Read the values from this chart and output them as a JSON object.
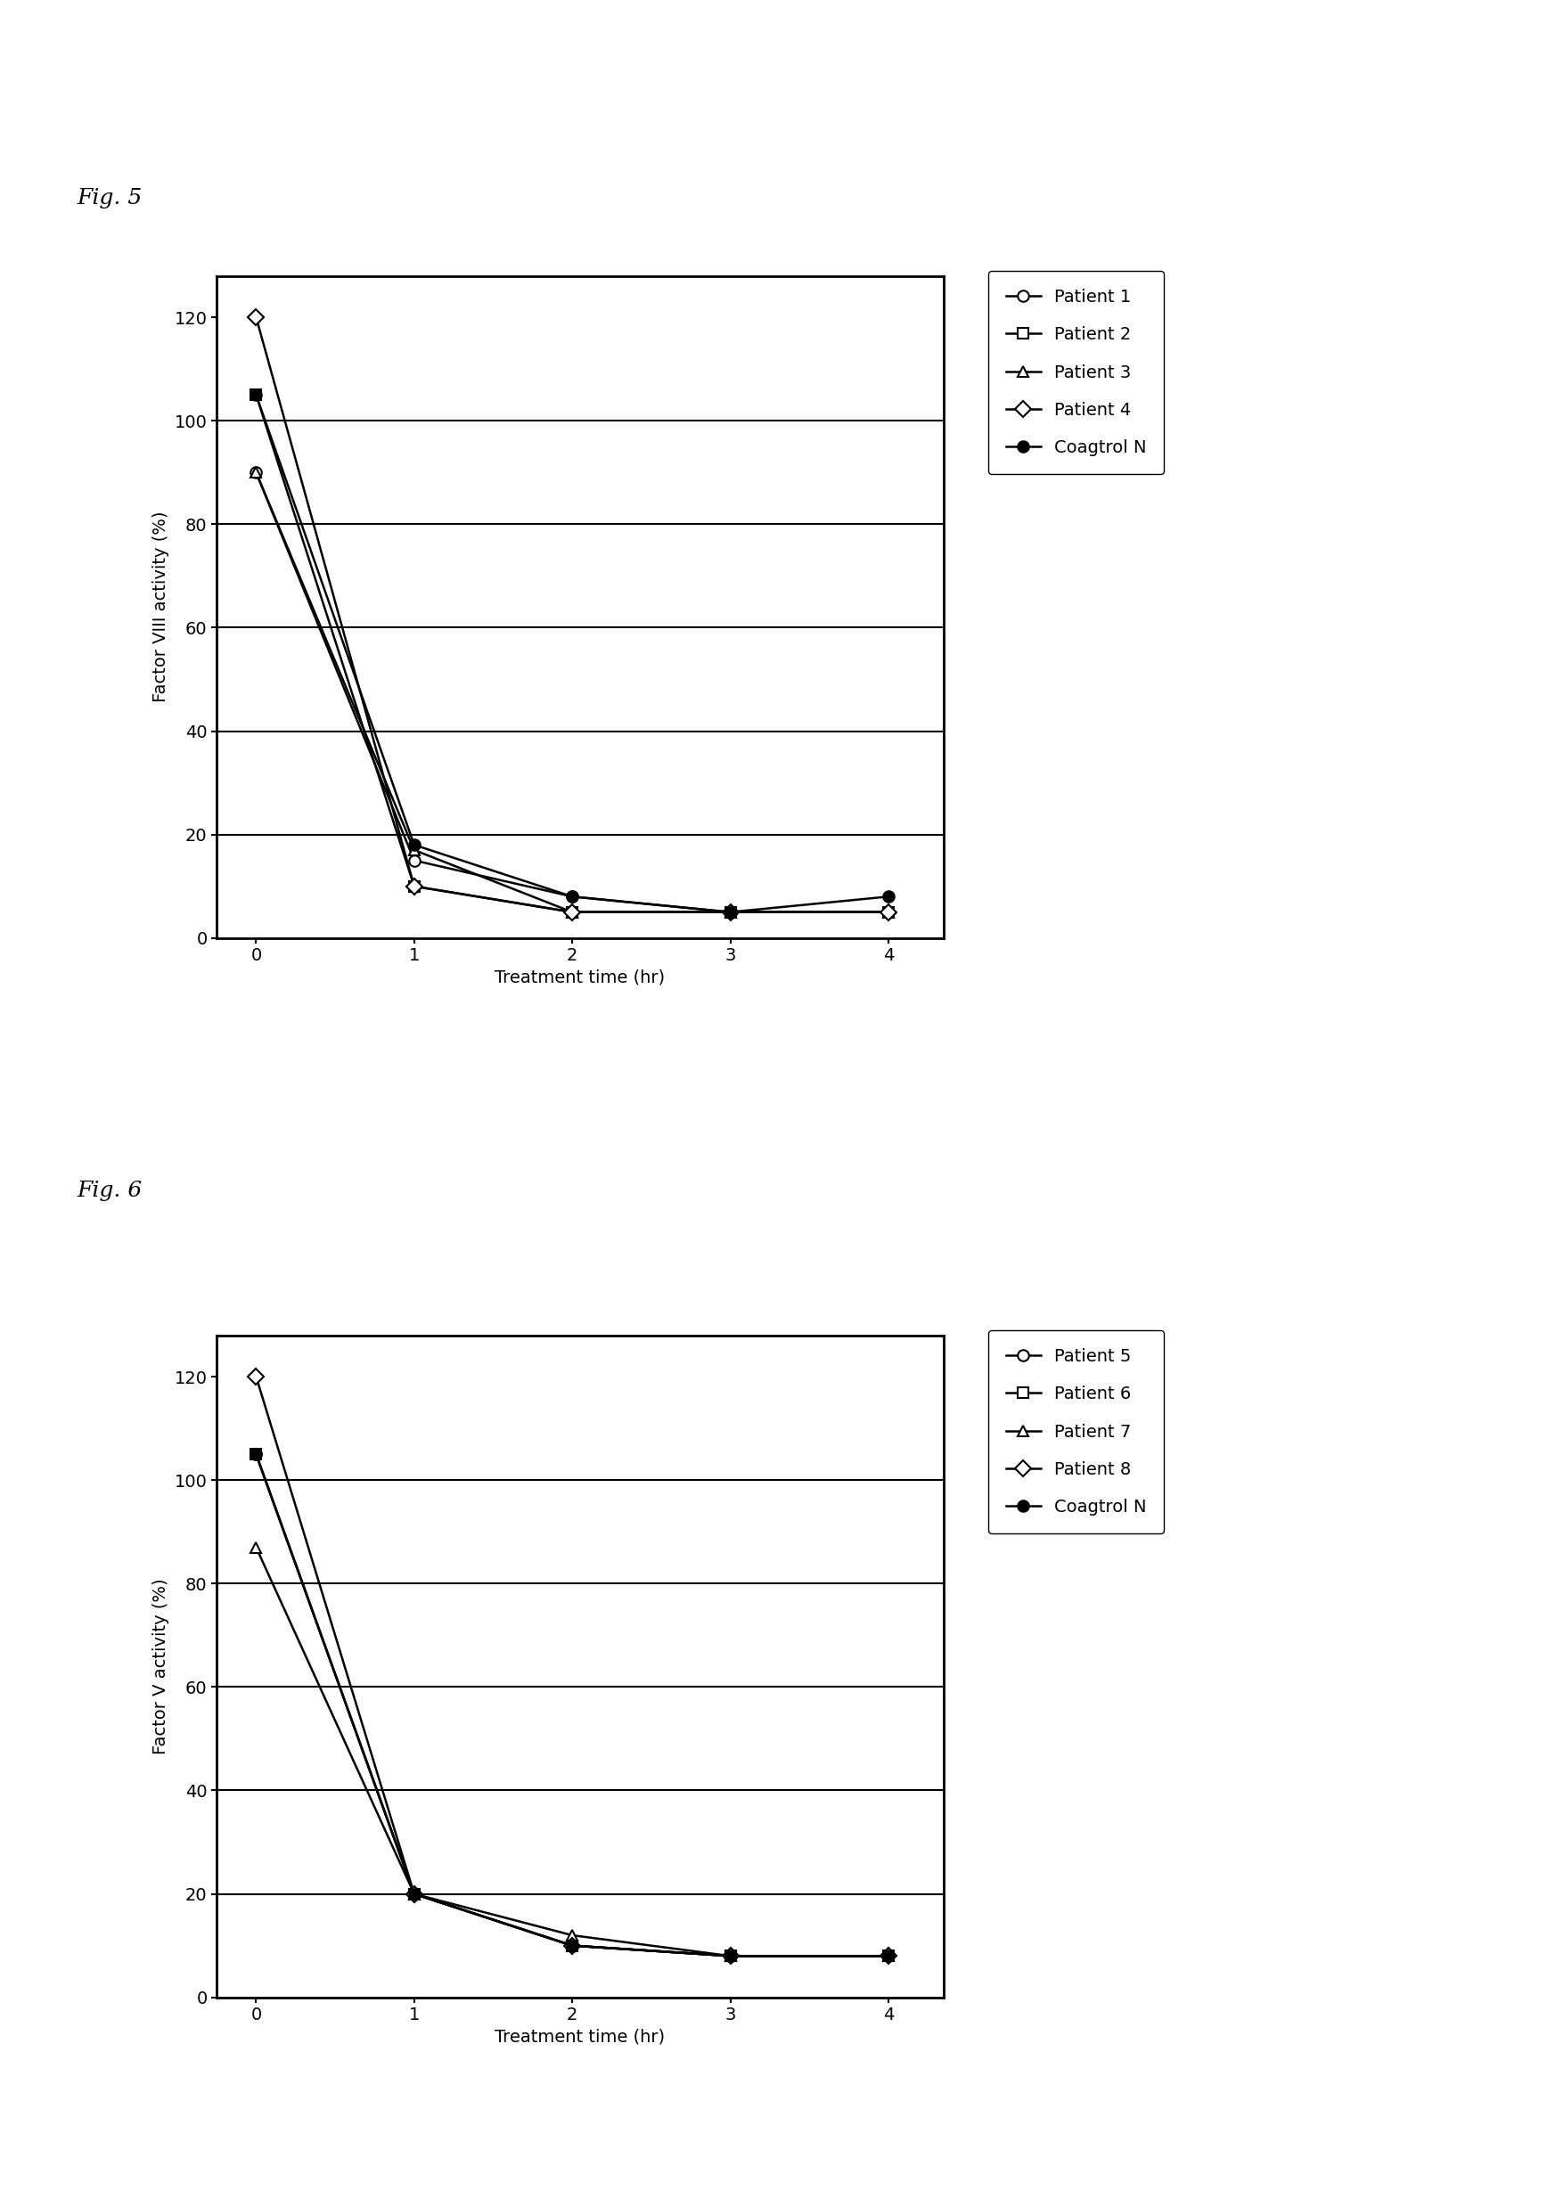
{
  "fig5": {
    "ylabel": "Factor VIII activity (%)",
    "xlabel": "Treatment time (hr)",
    "x": [
      0,
      1,
      2,
      3,
      4
    ],
    "series": [
      {
        "label": "Patient 1",
        "y": [
          90,
          15,
          8,
          5,
          5
        ],
        "marker": "o",
        "filled": false
      },
      {
        "label": "Patient 2",
        "y": [
          105,
          10,
          5,
          5,
          5
        ],
        "marker": "s",
        "filled": false
      },
      {
        "label": "Patient 3",
        "y": [
          90,
          17,
          5,
          5,
          5
        ],
        "marker": "^",
        "filled": false
      },
      {
        "label": "Patient 4",
        "y": [
          120,
          10,
          5,
          5,
          5
        ],
        "marker": "D",
        "filled": false
      },
      {
        "label": "Coagtrol N",
        "y": [
          105,
          18,
          8,
          5,
          8
        ],
        "marker": "o",
        "filled": true
      }
    ]
  },
  "fig6": {
    "ylabel": "Factor V activity (%)",
    "xlabel": "Treatment time (hr)",
    "x": [
      0,
      1,
      2,
      3,
      4
    ],
    "series": [
      {
        "label": "Patient 5",
        "y": [
          105,
          20,
          10,
          8,
          8
        ],
        "marker": "o",
        "filled": false
      },
      {
        "label": "Patient 6",
        "y": [
          105,
          20,
          10,
          8,
          8
        ],
        "marker": "s",
        "filled": false
      },
      {
        "label": "Patient 7",
        "y": [
          87,
          20,
          12,
          8,
          8
        ],
        "marker": "^",
        "filled": false
      },
      {
        "label": "Patient 8",
        "y": [
          120,
          20,
          10,
          8,
          8
        ],
        "marker": "D",
        "filled": false
      },
      {
        "label": "Coagtrol N",
        "y": [
          105,
          20,
          10,
          8,
          8
        ],
        "marker": "o",
        "filled": true
      }
    ]
  },
  "ylim": [
    0,
    128
  ],
  "yticks": [
    0,
    20,
    40,
    60,
    80,
    100,
    120
  ],
  "xlim": [
    -0.25,
    4.35
  ],
  "xticks": [
    0,
    1,
    2,
    3,
    4
  ],
  "grid_yticks": [
    20,
    40,
    60,
    80,
    100
  ],
  "background_color": "#ffffff",
  "fig5_label": "Fig. 5",
  "fig6_label": "Fig. 6",
  "fig_label_fontsize": 18,
  "axis_label_fontsize": 14,
  "tick_fontsize": 14,
  "legend_fontsize": 14,
  "markersize": 9,
  "linewidth": 1.8,
  "spine_linewidth": 2.0,
  "grid_linewidth": 1.5
}
